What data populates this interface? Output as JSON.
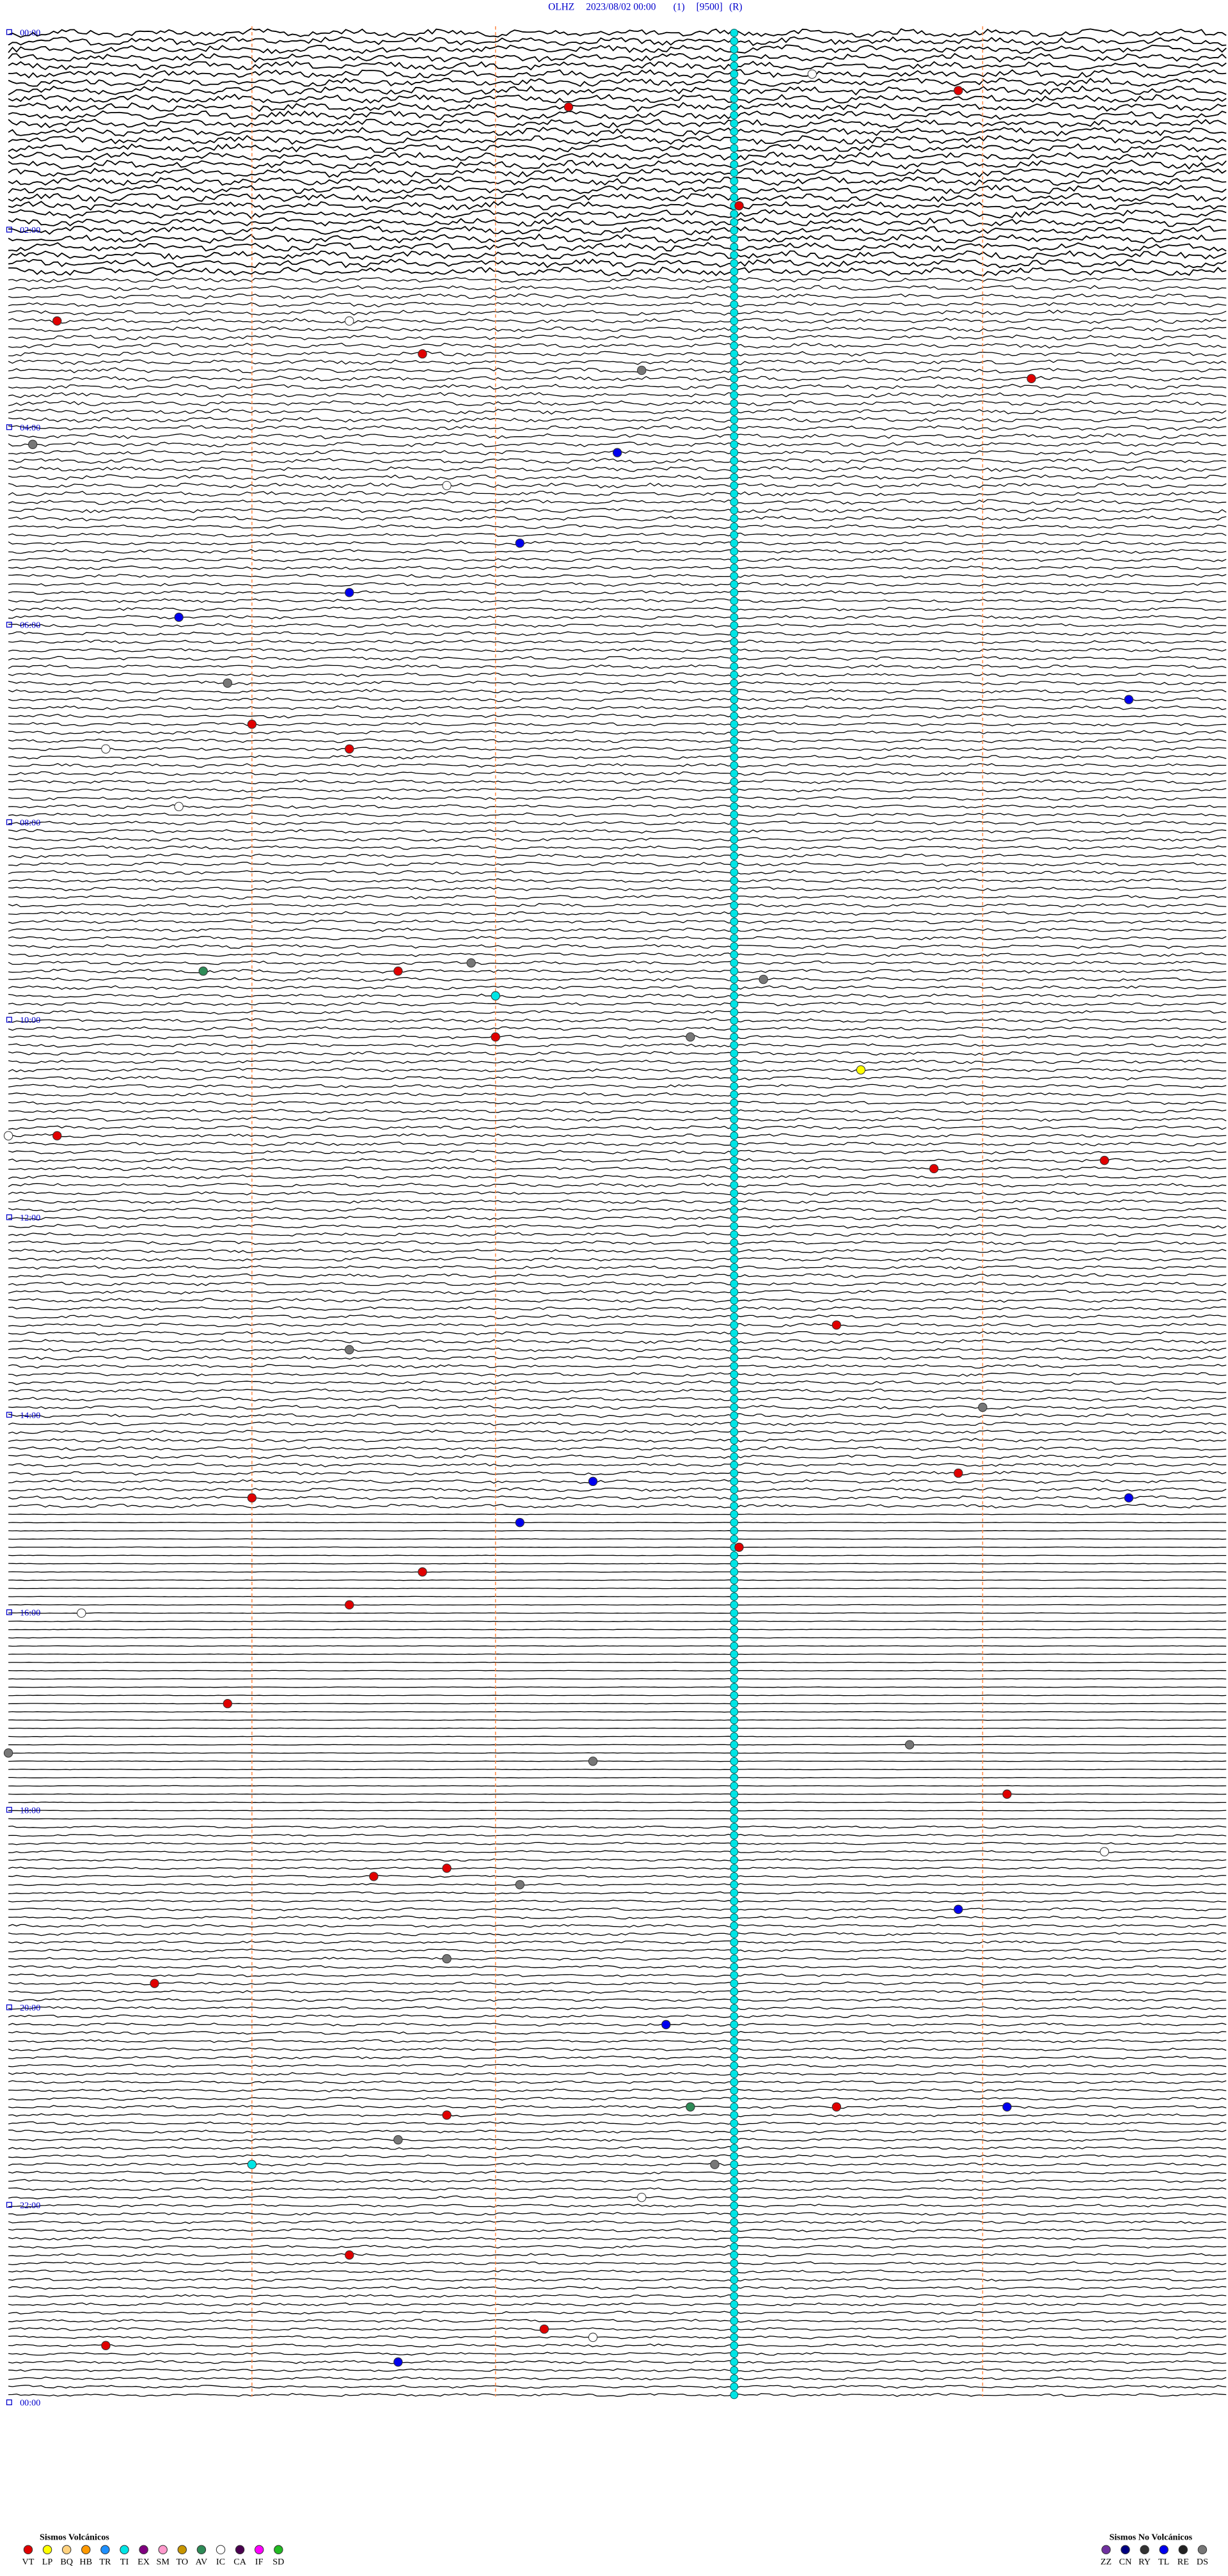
{
  "header": {
    "station": "OLHZ",
    "date": "2023/08/02 00:00",
    "channel": "(1)",
    "gain": "[9500]",
    "mode": "(R)"
  },
  "time_labels": [
    "00:00",
    "02:00",
    "04:00",
    "06:00",
    "08:00",
    "10:00",
    "12:00",
    "14:00",
    "16:00",
    "18:00",
    "20:00",
    "22:00",
    "00:00"
  ],
  "legend_volcanic": {
    "title": "Sismos Volcánicos",
    "items": [
      {
        "code": "VT",
        "color": "#e00000"
      },
      {
        "code": "LP",
        "color": "#ffff00"
      },
      {
        "code": "BQ",
        "color": "#ffd27f"
      },
      {
        "code": "HB",
        "color": "#ff9900"
      },
      {
        "code": "TR",
        "color": "#1e90ff"
      },
      {
        "code": "TI",
        "color": "#00e5e5"
      },
      {
        "code": "EX",
        "color": "#800080"
      },
      {
        "code": "SM",
        "color": "#ff99cc"
      },
      {
        "code": "TO",
        "color": "#c89600"
      },
      {
        "code": "AV",
        "color": "#2e8b57"
      },
      {
        "code": "IC",
        "color": "#ffffff"
      },
      {
        "code": "CA",
        "color": "#4b0050"
      },
      {
        "code": "IF",
        "color": "#ff00ff"
      },
      {
        "code": "SD",
        "color": "#22bb22"
      }
    ]
  },
  "legend_non_volcanic": {
    "title": "Sismos No Volcánicos",
    "items": [
      {
        "code": "ZZ",
        "color": "#7030a0"
      },
      {
        "code": "CN",
        "color": "#000080"
      },
      {
        "code": "RY",
        "color": "#333333"
      },
      {
        "code": "TL",
        "color": "#0000ee"
      },
      {
        "code": "RE",
        "color": "#222222"
      },
      {
        "code": "DS",
        "color": "#777777"
      }
    ]
  },
  "events": [
    {
      "code": "VT",
      "time": 47.3
    },
    {
      "code": "VT",
      "time": 38.9
    },
    {
      "code": "VT",
      "time": 108
    },
    {
      "code": "VT",
      "time": 175.2
    },
    {
      "code": "VT",
      "time": 196.7
    },
    {
      "code": "VT",
      "time": 214.2
    },
    {
      "code": "DS",
      "time": 207.6
    },
    {
      "code": "DS",
      "time": 250.1
    },
    {
      "code": "TL",
      "time": 257.5
    },
    {
      "code": "TL",
      "time": 312.1
    },
    {
      "code": "TL",
      "time": 341.4
    },
    {
      "code": "TL",
      "time": 355.7
    },
    {
      "code": "DS",
      "time": 395.9
    },
    {
      "code": "VT",
      "time": 421
    },
    {
      "code": "VT",
      "time": 436.4
    },
    {
      "code": "TL",
      "time": 409.6
    },
    {
      "code": "AV",
      "time": 570.8
    },
    {
      "code": "VT",
      "time": 571.6
    },
    {
      "code": "DS",
      "time": 566.9
    },
    {
      "code": "TI",
      "time": 587
    },
    {
      "code": "DS",
      "time": 578.1
    },
    {
      "code": "VT",
      "time": 612
    },
    {
      "code": "DS",
      "time": 612.8
    },
    {
      "code": "LP",
      "time": 633.5
    },
    {
      "code": "VT",
      "time": 670.2
    },
    {
      "code": "VT",
      "time": 693.8
    },
    {
      "code": "VT",
      "time": 689.5
    },
    {
      "code": "VT",
      "time": 788.4
    },
    {
      "code": "DS",
      "time": 801.4
    },
    {
      "code": "DS",
      "time": 839
    },
    {
      "code": "VT",
      "time": 878.9
    },
    {
      "code": "VT",
      "time": 891
    },
    {
      "code": "TL",
      "time": 882.4
    },
    {
      "code": "TL",
      "time": 894.6
    },
    {
      "code": "TL",
      "time": 907.1
    },
    {
      "code": "VT",
      "time": 923
    },
    {
      "code": "VT",
      "time": 936.7
    },
    {
      "code": "VT",
      "time": 956.4
    },
    {
      "code": "IC",
      "time": 960.3
    },
    {
      "code": "VT",
      "time": 1015.9
    },
    {
      "code": "DS",
      "time": 1045
    },
    {
      "code": "DS",
      "time": 1043.7
    },
    {
      "code": "DS",
      "time": 1052.4
    },
    {
      "code": "VT",
      "time": 1074.1
    },
    {
      "code": "VT",
      "time": 1121.5
    },
    {
      "code": "VT",
      "time": 1116.8
    },
    {
      "code": "DS",
      "time": 1127.1
    },
    {
      "code": "TL",
      "time": 1143.9
    },
    {
      "code": "DS",
      "time": 1171.8
    },
    {
      "code": "VT",
      "time": 1185.6
    },
    {
      "code": "TL",
      "time": 1212.7
    },
    {
      "code": "AV",
      "time": 1262.8
    },
    {
      "code": "VT",
      "time": 1263.4
    },
    {
      "code": "TL",
      "time": 1264.1
    },
    {
      "code": "VT",
      "time": 1266.8
    },
    {
      "code": "DS",
      "time": 1281.6
    },
    {
      "code": "TI",
      "time": 1296
    },
    {
      "code": "DS",
      "time": 1297.9
    },
    {
      "code": "VT",
      "time": 1351.4
    },
    {
      "code": "VT",
      "time": 1397.2
    },
    {
      "code": "TL",
      "time": 1416.6
    },
    {
      "code": "VT",
      "time": 1405.4
    },
    {
      "code": "IC",
      "time": 28.3
    },
    {
      "code": "IC",
      "time": 176.4
    },
    {
      "code": "IC",
      "time": 276.8
    },
    {
      "code": "IC",
      "time": 435.4
    },
    {
      "code": "IC",
      "time": 470.7
    },
    {
      "code": "IC",
      "time": 1109.5
    },
    {
      "code": "IC",
      "time": 1317.6
    },
    {
      "code": "IC",
      "time": 1402.4
    },
    {
      "code": "IC",
      "time": 670
    }
  ]
}
